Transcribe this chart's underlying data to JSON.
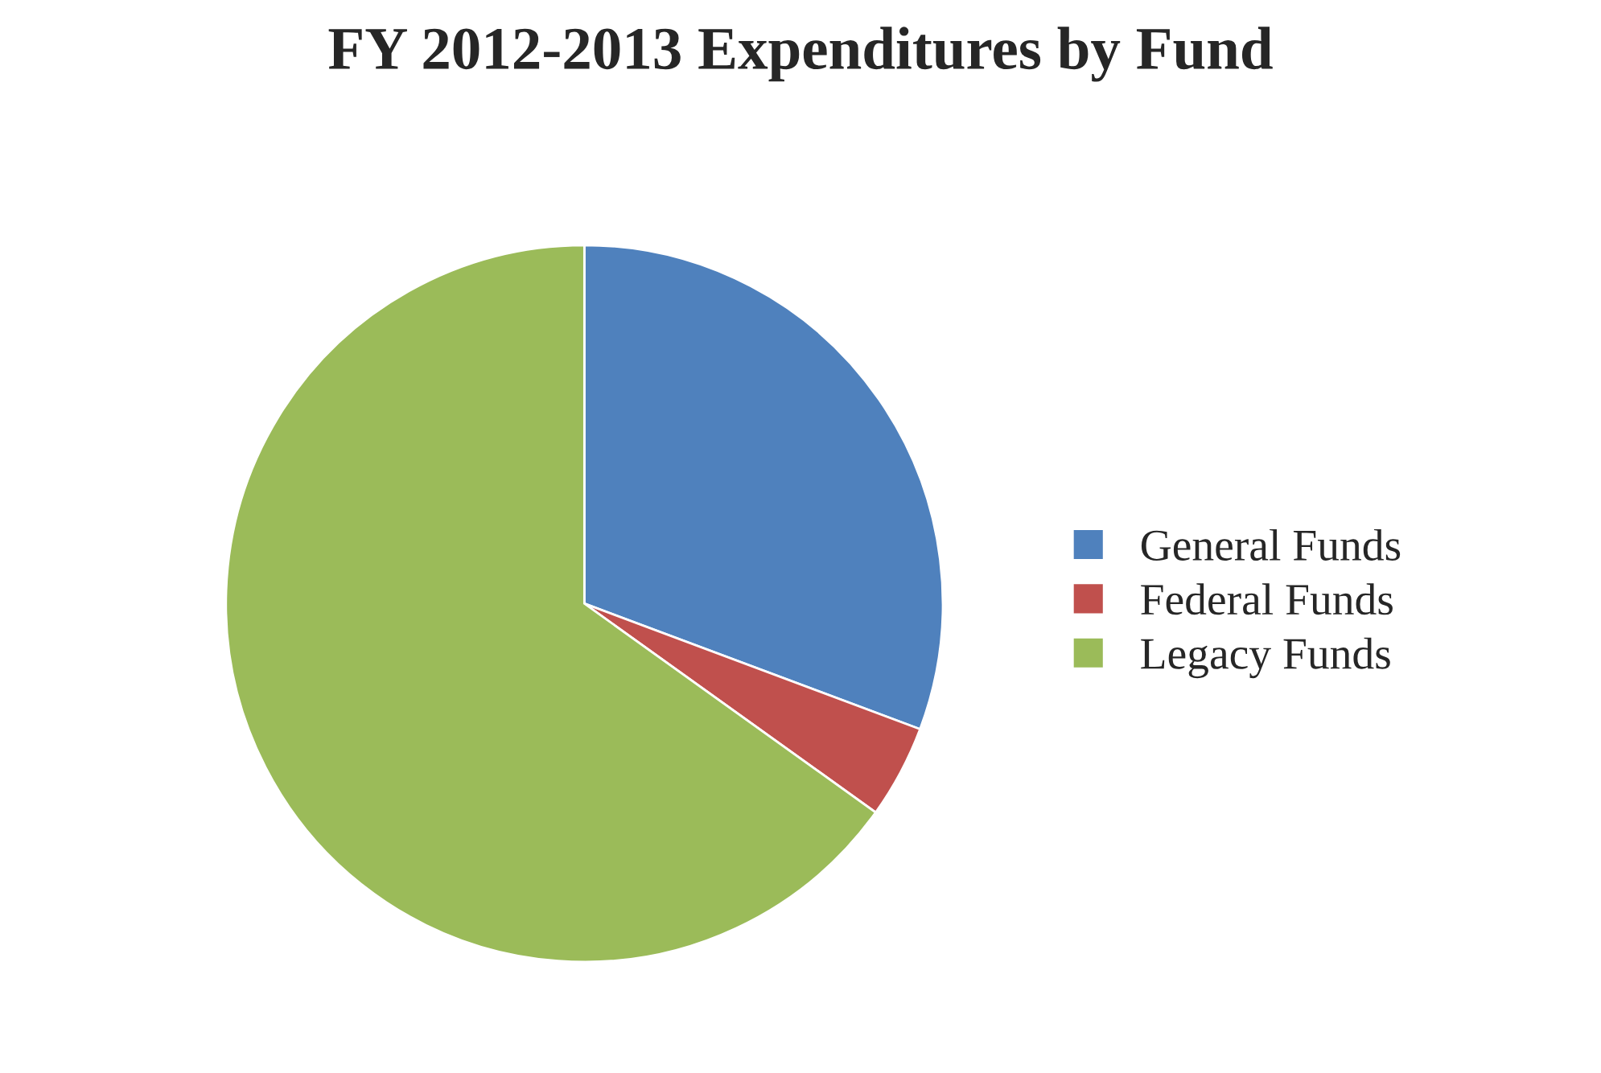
{
  "chart_data": {
    "type": "pie",
    "title": "FY 2012-2013 Expenditures by Fund",
    "categories": [
      "General Funds",
      "Federal Funds",
      "Legacy Funds"
    ],
    "values": [
      30.7,
      4.2,
      65.1
    ],
    "colors": [
      "#4f81bd",
      "#c0504d",
      "#9bbb59"
    ],
    "legend": "right"
  }
}
